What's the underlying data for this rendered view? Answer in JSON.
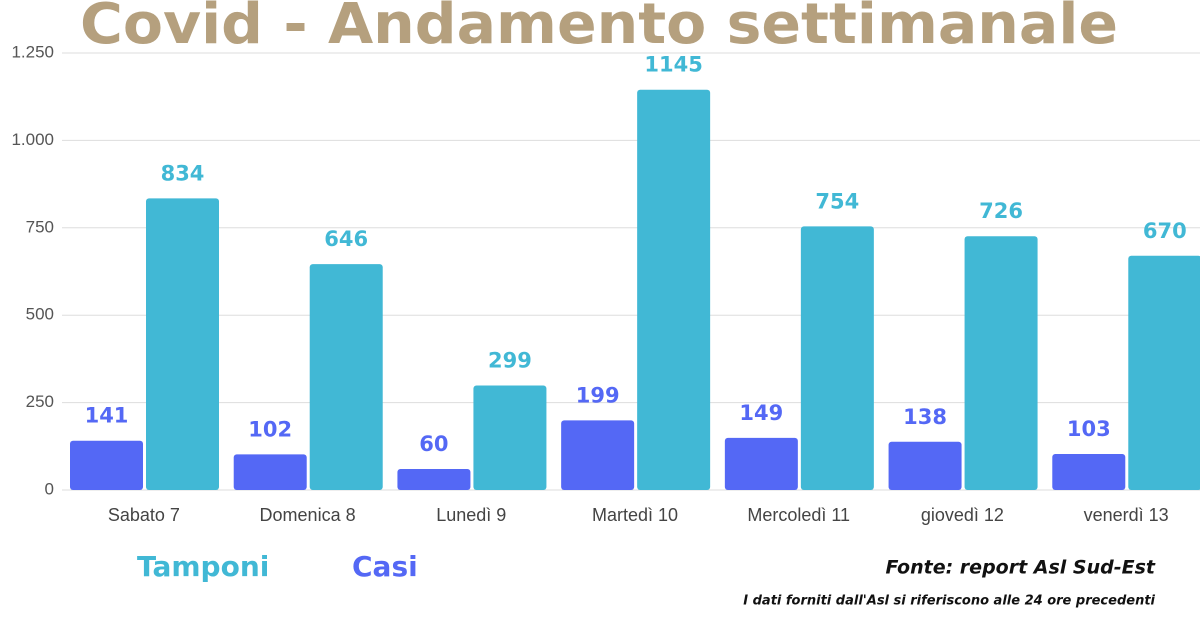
{
  "chart_data": {
    "type": "bar",
    "title": "Covid - Andamento settimanale",
    "categories": [
      "Sabato 7",
      "Domenica 8",
      "Lunedì 9",
      "Martedì 10",
      "Mercoledì 11",
      "giovedì 12",
      "venerdì 13"
    ],
    "series": [
      {
        "name": "Casi",
        "color": "#5468f5",
        "values": [
          141,
          102,
          60,
          199,
          149,
          138,
          103
        ]
      },
      {
        "name": "Tamponi",
        "color": "#41b8d5",
        "values": [
          834,
          646,
          299,
          1145,
          754,
          726,
          670
        ]
      }
    ],
    "ylim": [
      0,
      1250
    ],
    "yticks": [
      0,
      250,
      500,
      750,
      {
        "value": 1000,
        "label": "1.000"
      },
      {
        "value": 1250,
        "label": "1.250"
      }
    ],
    "grid": true,
    "source": "Fonte: report Asl Sud-Est",
    "note": "I dati forniti dall'Asl si riferiscono alle 24 ore precedenti"
  }
}
